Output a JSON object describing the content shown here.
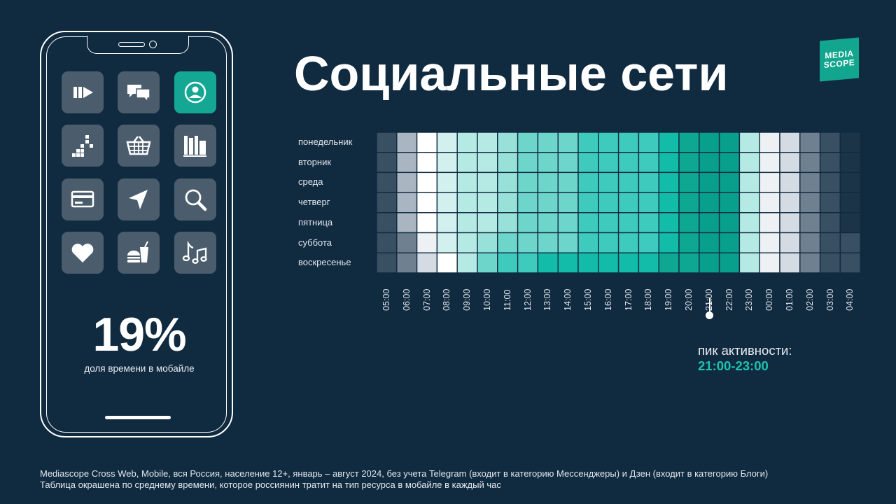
{
  "title": "Социальные сети",
  "logo": {
    "line1": "MEDIA",
    "line2": "SCOPE"
  },
  "phone": {
    "percent": "19%",
    "percent_label": "доля времени в мобайле",
    "apps": [
      {
        "icon": "video-icon",
        "highlighted": false
      },
      {
        "icon": "messages-icon",
        "highlighted": false
      },
      {
        "icon": "social-network-icon",
        "highlighted": true
      },
      {
        "icon": "blocks-icon",
        "highlighted": false
      },
      {
        "icon": "basket-icon",
        "highlighted": false
      },
      {
        "icon": "books-icon",
        "highlighted": false
      },
      {
        "icon": "card-icon",
        "highlighted": false
      },
      {
        "icon": "navigation-icon",
        "highlighted": false
      },
      {
        "icon": "search-icon",
        "highlighted": false
      },
      {
        "icon": "heart-icon",
        "highlighted": false
      },
      {
        "icon": "food-icon",
        "highlighted": false
      },
      {
        "icon": "music-icon",
        "highlighted": false
      }
    ]
  },
  "chart_data": {
    "type": "heatmap",
    "rows": [
      "понедельник",
      "вторник",
      "среда",
      "четверг",
      "пятница",
      "суббота",
      "воскресенье"
    ],
    "columns": [
      "05:00",
      "06:00",
      "07:00",
      "08:00",
      "09:00",
      "10:00",
      "11:00",
      "12:00",
      "13:00",
      "14:00",
      "15:00",
      "16:00",
      "17:00",
      "18:00",
      "19:00",
      "20:00",
      "21:00",
      "22:00",
      "23:00",
      "00:00",
      "01:00",
      "02:00",
      "03:00",
      "04:00"
    ],
    "value_scale": "0 = lowest (dark) … 9 = medium (white) … 14 = highest (deep teal)",
    "values": [
      [
        1,
        3,
        6,
        7,
        8,
        8,
        9,
        10,
        10,
        10,
        11,
        11,
        11,
        11,
        12,
        13,
        14,
        14,
        8,
        5,
        4,
        2,
        1,
        0
      ],
      [
        1,
        3,
        6,
        7,
        8,
        8,
        9,
        10,
        10,
        10,
        11,
        11,
        11,
        11,
        12,
        13,
        14,
        14,
        8,
        5,
        4,
        2,
        1,
        0
      ],
      [
        1,
        3,
        6,
        7,
        8,
        8,
        9,
        10,
        10,
        10,
        11,
        11,
        11,
        11,
        12,
        13,
        14,
        14,
        8,
        5,
        4,
        2,
        1,
        0
      ],
      [
        1,
        3,
        6,
        7,
        8,
        8,
        9,
        10,
        10,
        10,
        11,
        11,
        11,
        11,
        12,
        13,
        14,
        14,
        8,
        5,
        4,
        2,
        1,
        0
      ],
      [
        1,
        3,
        6,
        7,
        8,
        8,
        9,
        10,
        10,
        10,
        11,
        11,
        11,
        11,
        12,
        13,
        14,
        14,
        8,
        5,
        4,
        2,
        1,
        0
      ],
      [
        1,
        2,
        5,
        7,
        8,
        9,
        10,
        10,
        10,
        10,
        11,
        11,
        11,
        11,
        12,
        13,
        14,
        14,
        8,
        5,
        4,
        2,
        1,
        1
      ],
      [
        1,
        2,
        4,
        6,
        8,
        10,
        11,
        11,
        12,
        12,
        12,
        12,
        12,
        12,
        13,
        13,
        14,
        14,
        8,
        5,
        4,
        2,
        1,
        1
      ]
    ],
    "color_stops": [
      "#1c3447",
      "#394f62",
      "#6f8090",
      "#a9b5c0",
      "#d4dbe2",
      "#eef1f4",
      "#ffffff",
      "#d2f1ee",
      "#b5e9e3",
      "#97e1d9",
      "#6dd5ca",
      "#3ecbbd",
      "#12bca8",
      "#0ea892",
      "#08a08c"
    ],
    "annotation": {
      "label": "пик активности:",
      "value": "21:00-23:00",
      "column": "21:00"
    }
  },
  "footnotes": [
    "Mediascope Cross Web, Mobile, вся Россия, население 12+, январь – август 2024, без учета Telegram (входит в категорию Мессенджеры)  и Дзен (входит в категорию Блоги)",
    "Таблица окрашена по среднему времени, которое россиянин тратит на тип ресурса в мобайле в каждый час"
  ]
}
